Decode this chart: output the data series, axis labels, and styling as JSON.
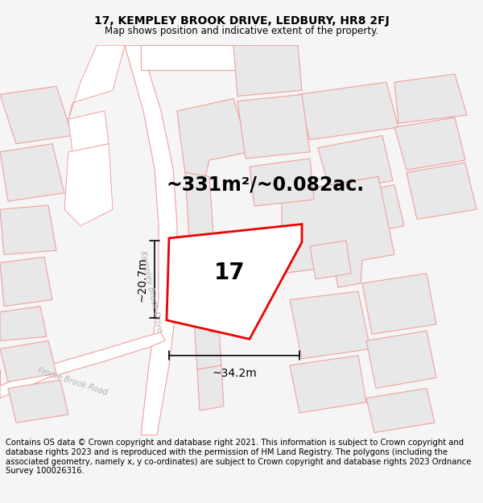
{
  "title": "17, KEMPLEY BROOK DRIVE, LEDBURY, HR8 2FJ",
  "subtitle": "Map shows position and indicative extent of the property.",
  "area_text": "~331m²/~0.082ac.",
  "dim_width": "~34.2m",
  "dim_height": "~20.7m",
  "plot_number": "17",
  "footer": "Contains OS data © Crown copyright and database right 2021. This information is subject to Crown copyright and database rights 2023 and is reproduced with the permission of HM Land Registry. The polygons (including the associated geometry, namely x, y co-ordinates) are subject to Crown copyright and database rights 2023 Ordnance Survey 100026316.",
  "bg_color": "#f5f5f5",
  "map_bg": "#ffffff",
  "road_outline": "#f0a0a0",
  "building_color": "#e8e8e8",
  "building_outline": "#f0a0a0",
  "plot_fill": "#ffffff",
  "plot_outline": "#ee0000",
  "dim_color": "#000000",
  "text_color": "#000000",
  "gray_text": "#b0b0b0",
  "title_fontsize": 10,
  "subtitle_fontsize": 8.5,
  "area_fontsize": 17,
  "plot_num_fontsize": 20,
  "dim_fontsize": 10,
  "footer_fontsize": 7.2,
  "road_label_fontsize": 7
}
